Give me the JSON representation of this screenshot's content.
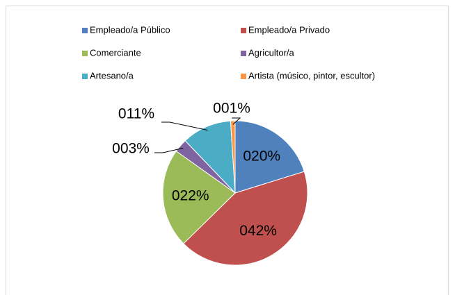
{
  "chart_data": {
    "type": "pie",
    "categories": [
      "Empleado/a Público",
      "Empleado/a Privado",
      "Comerciante",
      "Agricultor/a",
      "Artesano/a",
      "Artista (músico, pintor, escultor)"
    ],
    "values": [
      20,
      42,
      22,
      3,
      11,
      1
    ],
    "value_labels": [
      "020%",
      "042%",
      "022%",
      "003%",
      "011%",
      "001%"
    ],
    "colors": [
      "#4f81bd",
      "#c0504d",
      "#9bbb59",
      "#8064a2",
      "#4bacc6",
      "#f79646"
    ],
    "legend": "top"
  }
}
